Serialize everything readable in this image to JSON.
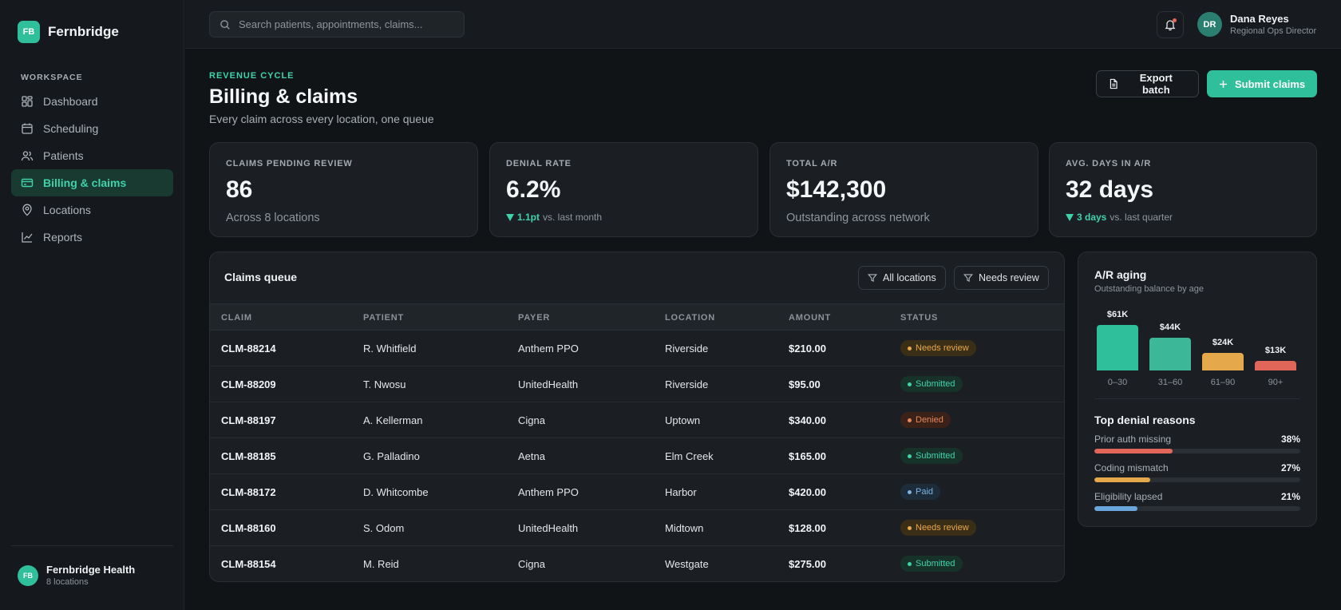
{
  "app": {
    "name": "Fernbridge",
    "logo_initials": "FB"
  },
  "sidebar": {
    "section_label": "WORKSPACE",
    "items": [
      {
        "label": "Dashboard",
        "icon": "grid-icon",
        "active": false
      },
      {
        "label": "Scheduling",
        "icon": "calendar-icon",
        "active": false
      },
      {
        "label": "Patients",
        "icon": "users-icon",
        "active": false
      },
      {
        "label": "Billing & claims",
        "icon": "credit-card-icon",
        "active": true
      },
      {
        "label": "Locations",
        "icon": "map-pin-icon",
        "active": false
      },
      {
        "label": "Reports",
        "icon": "line-chart-icon",
        "active": false
      }
    ],
    "org": {
      "initials": "FB",
      "name": "Fernbridge Health",
      "sub": "8 locations"
    }
  },
  "topbar": {
    "search_placeholder": "Search patients, appointments, claims...",
    "user": {
      "initials": "DR",
      "name": "Dana Reyes",
      "role": "Regional Ops Director"
    }
  },
  "page": {
    "eyebrow": "REVENUE CYCLE",
    "title": "Billing & claims",
    "subtitle": "Every claim across every location, one queue",
    "export_label": "Export batch",
    "submit_label": "Submit claims"
  },
  "stats": [
    {
      "label": "CLAIMS PENDING REVIEW",
      "value": "86",
      "note": "Across 8 locations"
    },
    {
      "label": "DENIAL RATE",
      "value": "6.2%",
      "delta": "1.1pt",
      "delta_note": "vs. last month"
    },
    {
      "label": "TOTAL A/R",
      "value": "$142,300",
      "note": "Outstanding across network"
    },
    {
      "label": "AVG. DAYS IN A/R",
      "value": "32 days",
      "delta": "3 days",
      "delta_note": "vs. last quarter"
    }
  ],
  "queue": {
    "title": "Claims queue",
    "filters": [
      "All locations",
      "Needs review"
    ],
    "columns": [
      "CLAIM",
      "PATIENT",
      "PAYER",
      "LOCATION",
      "AMOUNT",
      "STATUS"
    ],
    "rows": [
      {
        "claim": "CLM-88214",
        "patient": "R. Whitfield",
        "payer": "Anthem PPO",
        "location": "Riverside",
        "amount": "$210.00",
        "status": "Needs review"
      },
      {
        "claim": "CLM-88209",
        "patient": "T. Nwosu",
        "payer": "UnitedHealth",
        "location": "Riverside",
        "amount": "$95.00",
        "status": "Submitted"
      },
      {
        "claim": "CLM-88197",
        "patient": "A. Kellerman",
        "payer": "Cigna",
        "location": "Uptown",
        "amount": "$340.00",
        "status": "Denied"
      },
      {
        "claim": "CLM-88185",
        "patient": "G. Palladino",
        "payer": "Aetna",
        "location": "Elm Creek",
        "amount": "$165.00",
        "status": "Submitted"
      },
      {
        "claim": "CLM-88172",
        "patient": "D. Whitcombe",
        "payer": "Anthem PPO",
        "location": "Harbor",
        "amount": "$420.00",
        "status": "Paid"
      },
      {
        "claim": "CLM-88160",
        "patient": "S. Odom",
        "payer": "UnitedHealth",
        "location": "Midtown",
        "amount": "$128.00",
        "status": "Needs review"
      },
      {
        "claim": "CLM-88154",
        "patient": "M. Reid",
        "payer": "Cigna",
        "location": "Westgate",
        "amount": "$275.00",
        "status": "Submitted"
      }
    ],
    "status_colors": {
      "Needs review": {
        "bg": "#3a2e17",
        "fg": "#e9a84a"
      },
      "Submitted": {
        "bg": "#173329",
        "fg": "#3fd2ab"
      },
      "Denied": {
        "bg": "#3b2219",
        "fg": "#e8855e"
      },
      "Paid": {
        "bg": "#1c2c3a",
        "fg": "#7fb3e0"
      }
    }
  },
  "aging": {
    "title": "A/R aging",
    "subtitle": "Outstanding balance by age",
    "chart_data": {
      "type": "bar",
      "categories": [
        "0–30",
        "31–60",
        "61–90",
        "90+"
      ],
      "values": [
        61,
        44,
        24,
        13
      ],
      "value_labels": [
        "$61K",
        "$44K",
        "$24K",
        "$13K"
      ],
      "colors": [
        "#2fbf9a",
        "#3cb898",
        "#e5a84a",
        "#e0665a"
      ]
    },
    "denial_title": "Top denial reasons",
    "reasons": [
      {
        "label": "Prior auth missing",
        "pct": "38%",
        "value": 38,
        "color": "#e0665a"
      },
      {
        "label": "Coding mismatch",
        "pct": "27%",
        "value": 27,
        "color": "#e5a84a"
      },
      {
        "label": "Eligibility lapsed",
        "pct": "21%",
        "value": 21,
        "color": "#6aa6dc"
      }
    ]
  }
}
